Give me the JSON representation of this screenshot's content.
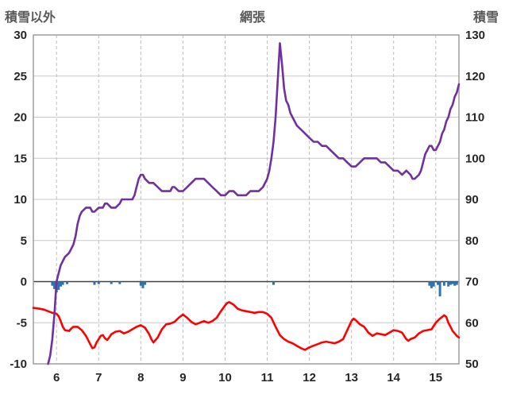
{
  "header": {
    "left_axis_title": "積雪以外",
    "title": "網張",
    "right_axis_title": "積雪"
  },
  "colors": {
    "purple_line": "#7030A0",
    "red_line": "#FF0000",
    "blue_bars": "#2E74B5",
    "grid": "#C9C9C9",
    "grid_dashed": "#BFBFBF",
    "border": "#9E9E9E",
    "zero_line": "#404040",
    "tick_label": "#262626",
    "header_label": "#595959",
    "background": "#FFFFFF"
  },
  "chart_data": {
    "type": "line",
    "title": "網張",
    "left_axis": {
      "label": "積雪以外",
      "min": -10,
      "max": 30,
      "ticks": [
        -10,
        -5,
        0,
        5,
        10,
        15,
        20,
        25,
        30
      ]
    },
    "right_axis": {
      "label": "積雪",
      "min": 50,
      "max": 130,
      "ticks": [
        50,
        60,
        70,
        80,
        90,
        100,
        110,
        120,
        130
      ]
    },
    "x_axis": {
      "min": 5.45,
      "max": 15.55,
      "ticks": [
        6,
        7,
        8,
        9,
        10,
        11,
        12,
        13,
        14,
        15
      ]
    },
    "grid": {
      "horizontal": "solid",
      "vertical": "dashed",
      "zero_line": true
    },
    "legend": "none",
    "series": [
      {
        "name": "blue-bars",
        "type": "bar",
        "axis": "left",
        "color": "#2E74B5",
        "points": [
          [
            5.9,
            -0.5
          ],
          [
            5.95,
            -0.9
          ],
          [
            6.0,
            -1.3
          ],
          [
            6.05,
            -1.0
          ],
          [
            6.1,
            -0.6
          ],
          [
            6.15,
            -0.4
          ],
          [
            6.25,
            -0.3
          ],
          [
            6.9,
            -0.4
          ],
          [
            7.0,
            -0.3
          ],
          [
            7.3,
            -0.3
          ],
          [
            7.5,
            -0.3
          ],
          [
            8.0,
            -0.5
          ],
          [
            8.05,
            -0.8
          ],
          [
            8.1,
            -0.4
          ],
          [
            11.15,
            -0.4
          ],
          [
            14.85,
            -0.5
          ],
          [
            14.9,
            -0.8
          ],
          [
            14.95,
            -0.6
          ],
          [
            15.05,
            -0.4
          ],
          [
            15.1,
            -1.8
          ],
          [
            15.2,
            -0.5
          ],
          [
            15.3,
            -0.6
          ],
          [
            15.35,
            -0.4
          ],
          [
            15.4,
            -0.3
          ],
          [
            15.45,
            -0.5
          ],
          [
            15.5,
            -0.4
          ]
        ]
      },
      {
        "name": "red-line",
        "type": "line",
        "axis": "left",
        "color": "#FF0000",
        "points": [
          [
            5.45,
            -3.2
          ],
          [
            5.6,
            -3.3
          ],
          [
            5.7,
            -3.4
          ],
          [
            5.8,
            -3.6
          ],
          [
            5.9,
            -3.8
          ],
          [
            6.0,
            -3.9
          ],
          [
            6.05,
            -4.2
          ],
          [
            6.1,
            -4.8
          ],
          [
            6.15,
            -5.5
          ],
          [
            6.2,
            -5.9
          ],
          [
            6.3,
            -6.0
          ],
          [
            6.35,
            -5.7
          ],
          [
            6.4,
            -5.5
          ],
          [
            6.5,
            -5.5
          ],
          [
            6.6,
            -5.9
          ],
          [
            6.7,
            -6.6
          ],
          [
            6.8,
            -7.6
          ],
          [
            6.85,
            -8.1
          ],
          [
            6.9,
            -8.0
          ],
          [
            6.95,
            -7.4
          ],
          [
            7.0,
            -7.0
          ],
          [
            7.05,
            -6.6
          ],
          [
            7.1,
            -6.5
          ],
          [
            7.15,
            -6.9
          ],
          [
            7.2,
            -7.1
          ],
          [
            7.25,
            -6.8
          ],
          [
            7.3,
            -6.4
          ],
          [
            7.4,
            -6.1
          ],
          [
            7.5,
            -6.0
          ],
          [
            7.6,
            -6.3
          ],
          [
            7.7,
            -6.1
          ],
          [
            7.8,
            -5.8
          ],
          [
            7.9,
            -5.5
          ],
          [
            8.0,
            -5.3
          ],
          [
            8.1,
            -5.6
          ],
          [
            8.2,
            -6.4
          ],
          [
            8.25,
            -7.0
          ],
          [
            8.3,
            -7.4
          ],
          [
            8.35,
            -7.1
          ],
          [
            8.4,
            -6.8
          ],
          [
            8.5,
            -5.8
          ],
          [
            8.6,
            -5.2
          ],
          [
            8.7,
            -5.1
          ],
          [
            8.8,
            -4.9
          ],
          [
            8.9,
            -4.4
          ],
          [
            9.0,
            -4.0
          ],
          [
            9.05,
            -4.2
          ],
          [
            9.1,
            -4.4
          ],
          [
            9.2,
            -4.9
          ],
          [
            9.3,
            -5.2
          ],
          [
            9.4,
            -5.0
          ],
          [
            9.5,
            -4.8
          ],
          [
            9.6,
            -5.0
          ],
          [
            9.7,
            -4.8
          ],
          [
            9.8,
            -4.4
          ],
          [
            9.9,
            -3.6
          ],
          [
            10.0,
            -2.9
          ],
          [
            10.05,
            -2.6
          ],
          [
            10.1,
            -2.5
          ],
          [
            10.2,
            -2.8
          ],
          [
            10.3,
            -3.3
          ],
          [
            10.4,
            -3.5
          ],
          [
            10.5,
            -3.6
          ],
          [
            10.6,
            -3.7
          ],
          [
            10.7,
            -3.8
          ],
          [
            10.8,
            -3.7
          ],
          [
            10.9,
            -3.7
          ],
          [
            11.0,
            -3.9
          ],
          [
            11.1,
            -4.4
          ],
          [
            11.2,
            -5.5
          ],
          [
            11.3,
            -6.5
          ],
          [
            11.4,
            -7.0
          ],
          [
            11.5,
            -7.3
          ],
          [
            11.6,
            -7.5
          ],
          [
            11.7,
            -7.8
          ],
          [
            11.8,
            -8.1
          ],
          [
            11.9,
            -8.3
          ],
          [
            12.0,
            -8.0
          ],
          [
            12.1,
            -7.8
          ],
          [
            12.2,
            -7.6
          ],
          [
            12.3,
            -7.4
          ],
          [
            12.4,
            -7.3
          ],
          [
            12.5,
            -7.4
          ],
          [
            12.6,
            -7.5
          ],
          [
            12.7,
            -7.3
          ],
          [
            12.8,
            -7.0
          ],
          [
            12.9,
            -5.9
          ],
          [
            13.0,
            -4.8
          ],
          [
            13.05,
            -4.5
          ],
          [
            13.1,
            -4.7
          ],
          [
            13.2,
            -5.2
          ],
          [
            13.3,
            -5.5
          ],
          [
            13.4,
            -6.2
          ],
          [
            13.5,
            -6.6
          ],
          [
            13.6,
            -6.3
          ],
          [
            13.7,
            -6.4
          ],
          [
            13.8,
            -6.5
          ],
          [
            13.9,
            -6.2
          ],
          [
            14.0,
            -5.9
          ],
          [
            14.1,
            -6.0
          ],
          [
            14.2,
            -6.2
          ],
          [
            14.3,
            -7.0
          ],
          [
            14.35,
            -7.2
          ],
          [
            14.4,
            -7.0
          ],
          [
            14.5,
            -6.8
          ],
          [
            14.6,
            -6.3
          ],
          [
            14.7,
            -6.0
          ],
          [
            14.8,
            -5.9
          ],
          [
            14.9,
            -5.8
          ],
          [
            15.0,
            -5.0
          ],
          [
            15.1,
            -4.5
          ],
          [
            15.2,
            -4.1
          ],
          [
            15.25,
            -4.3
          ],
          [
            15.3,
            -5.0
          ],
          [
            15.35,
            -5.5
          ],
          [
            15.4,
            -6.0
          ],
          [
            15.45,
            -6.3
          ],
          [
            15.5,
            -6.6
          ],
          [
            15.55,
            -6.8
          ]
        ]
      },
      {
        "name": "purple-line",
        "type": "line",
        "axis": "right",
        "color": "#7030A0",
        "points": [
          [
            5.8,
            50
          ],
          [
            5.85,
            52
          ],
          [
            5.9,
            56
          ],
          [
            5.95,
            62
          ],
          [
            6.0,
            70
          ],
          [
            6.05,
            72
          ],
          [
            6.1,
            74
          ],
          [
            6.2,
            76
          ],
          [
            6.3,
            77
          ],
          [
            6.4,
            79
          ],
          [
            6.45,
            81
          ],
          [
            6.5,
            84
          ],
          [
            6.55,
            86
          ],
          [
            6.6,
            87
          ],
          [
            6.7,
            88
          ],
          [
            6.8,
            88
          ],
          [
            6.85,
            87
          ],
          [
            6.9,
            87
          ],
          [
            7.0,
            88
          ],
          [
            7.1,
            88
          ],
          [
            7.15,
            89
          ],
          [
            7.2,
            89
          ],
          [
            7.3,
            88
          ],
          [
            7.4,
            88
          ],
          [
            7.5,
            89
          ],
          [
            7.55,
            90
          ],
          [
            7.7,
            90
          ],
          [
            7.8,
            90
          ],
          [
            7.85,
            91
          ],
          [
            7.9,
            93
          ],
          [
            7.95,
            95
          ],
          [
            8.0,
            96
          ],
          [
            8.05,
            96
          ],
          [
            8.1,
            95
          ],
          [
            8.2,
            94
          ],
          [
            8.3,
            94
          ],
          [
            8.4,
            93
          ],
          [
            8.5,
            92
          ],
          [
            8.6,
            92
          ],
          [
            8.7,
            92
          ],
          [
            8.75,
            93
          ],
          [
            8.8,
            93
          ],
          [
            8.9,
            92
          ],
          [
            9.0,
            92
          ],
          [
            9.1,
            93
          ],
          [
            9.2,
            94
          ],
          [
            9.3,
            95
          ],
          [
            9.4,
            95
          ],
          [
            9.5,
            95
          ],
          [
            9.6,
            94
          ],
          [
            9.7,
            93
          ],
          [
            9.8,
            92
          ],
          [
            9.9,
            91
          ],
          [
            10.0,
            91
          ],
          [
            10.1,
            92
          ],
          [
            10.2,
            92
          ],
          [
            10.3,
            91
          ],
          [
            10.4,
            91
          ],
          [
            10.5,
            91
          ],
          [
            10.6,
            92
          ],
          [
            10.7,
            92
          ],
          [
            10.8,
            92
          ],
          [
            10.9,
            93
          ],
          [
            11.0,
            95
          ],
          [
            11.05,
            97
          ],
          [
            11.1,
            100
          ],
          [
            11.15,
            104
          ],
          [
            11.2,
            110
          ],
          [
            11.25,
            119
          ],
          [
            11.3,
            128
          ],
          [
            11.35,
            123
          ],
          [
            11.4,
            117
          ],
          [
            11.45,
            114
          ],
          [
            11.5,
            113
          ],
          [
            11.55,
            111
          ],
          [
            11.6,
            110
          ],
          [
            11.7,
            108
          ],
          [
            11.8,
            107
          ],
          [
            11.9,
            106
          ],
          [
            12.0,
            105
          ],
          [
            12.1,
            104
          ],
          [
            12.2,
            104
          ],
          [
            12.3,
            103
          ],
          [
            12.4,
            103
          ],
          [
            12.5,
            102
          ],
          [
            12.6,
            101
          ],
          [
            12.7,
            100
          ],
          [
            12.8,
            100
          ],
          [
            12.9,
            99
          ],
          [
            13.0,
            98
          ],
          [
            13.1,
            98
          ],
          [
            13.2,
            99
          ],
          [
            13.3,
            100
          ],
          [
            13.4,
            100
          ],
          [
            13.5,
            100
          ],
          [
            13.6,
            100
          ],
          [
            13.7,
            99
          ],
          [
            13.8,
            99
          ],
          [
            13.9,
            98
          ],
          [
            14.0,
            97
          ],
          [
            14.1,
            97
          ],
          [
            14.2,
            96
          ],
          [
            14.3,
            97
          ],
          [
            14.4,
            96
          ],
          [
            14.45,
            95
          ],
          [
            14.5,
            95
          ],
          [
            14.6,
            96
          ],
          [
            14.65,
            97
          ],
          [
            14.7,
            99
          ],
          [
            14.75,
            101
          ],
          [
            14.8,
            102
          ],
          [
            14.85,
            103
          ],
          [
            14.9,
            103
          ],
          [
            14.95,
            102
          ],
          [
            15.0,
            102
          ],
          [
            15.05,
            103
          ],
          [
            15.1,
            104
          ],
          [
            15.15,
            106
          ],
          [
            15.2,
            107
          ],
          [
            15.25,
            109
          ],
          [
            15.3,
            110
          ],
          [
            15.35,
            112
          ],
          [
            15.4,
            113
          ],
          [
            15.45,
            115
          ],
          [
            15.5,
            116
          ],
          [
            15.55,
            118
          ]
        ]
      }
    ]
  }
}
